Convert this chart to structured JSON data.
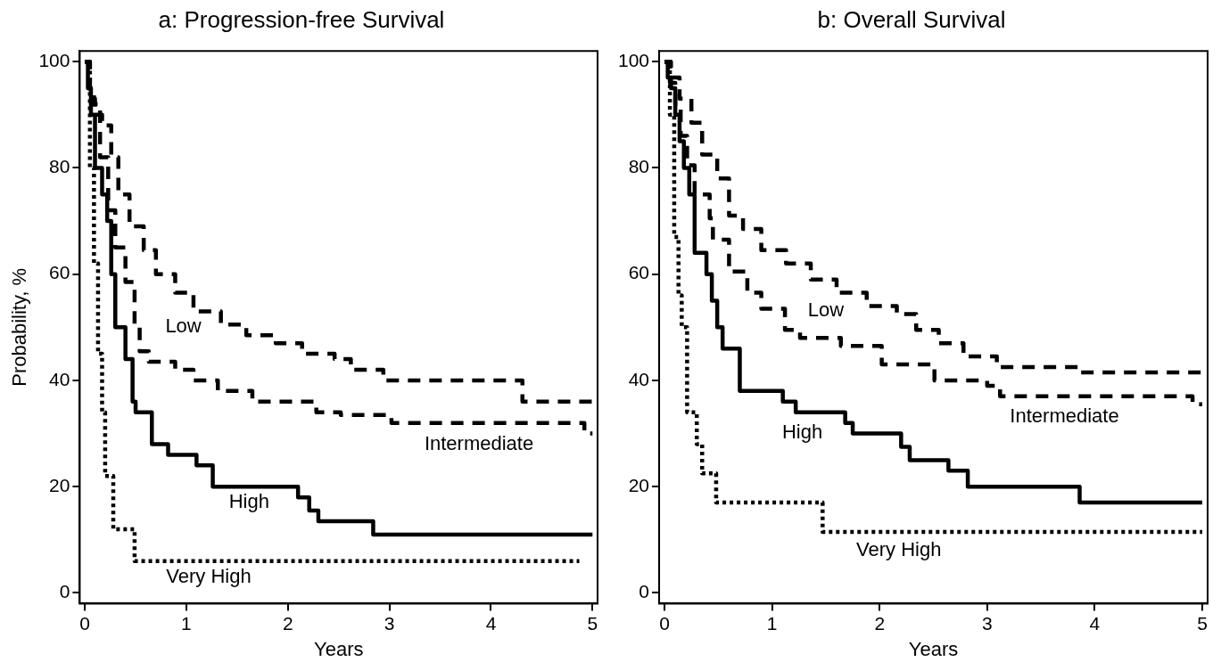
{
  "chart_data": [
    {
      "type": "step",
      "title": "a: Progression-free Survival",
      "xlabel": "Years",
      "ylabel": "Probability, %",
      "xlim": [
        -0.05,
        5.05
      ],
      "ylim": [
        -2,
        102
      ],
      "xticks": [
        0,
        1,
        2,
        3,
        4,
        5
      ],
      "yticks": [
        0,
        20,
        40,
        60,
        80,
        100
      ],
      "marker": "none",
      "series": [
        {
          "name": "Low",
          "color": "#000000",
          "line_style": "dashed",
          "x": [
            0,
            0.05,
            0.1,
            0.17,
            0.26,
            0.33,
            0.44,
            0.58,
            0.7,
            0.89,
            1.07,
            1.34,
            1.59,
            1.88,
            2.14,
            2.46,
            2.62,
            2.94,
            4.31,
            5
          ],
          "values": [
            100,
            93,
            90,
            88,
            82,
            75,
            69,
            64.5,
            60,
            56.5,
            53,
            50.5,
            48.5,
            47,
            45,
            44,
            42,
            40,
            36,
            36
          ]
        },
        {
          "name": "Intermediate",
          "color": "#000000",
          "line_style": "dashed",
          "x": [
            0,
            0.05,
            0.09,
            0.15,
            0.23,
            0.3,
            0.4,
            0.49,
            0.54,
            0.63,
            0.89,
            1.07,
            1.31,
            1.65,
            2.28,
            2.52,
            3.02,
            4.92,
            5
          ],
          "values": [
            100,
            95,
            92,
            82,
            72,
            65,
            58.5,
            50,
            45.5,
            43.5,
            42,
            40,
            38,
            36,
            34,
            33.5,
            32,
            30,
            30
          ]
        },
        {
          "name": "High",
          "color": "#000000",
          "line_style": "solid",
          "x": [
            0,
            0.03,
            0.06,
            0.1,
            0.17,
            0.22,
            0.26,
            0.3,
            0.4,
            0.47,
            0.5,
            0.66,
            0.82,
            1.1,
            1.26,
            2.1,
            2.21,
            2.3,
            2.84,
            5
          ],
          "values": [
            100,
            95,
            90,
            80,
            75,
            70,
            60,
            50,
            44,
            36,
            34,
            28,
            26,
            24,
            20,
            18,
            15.5,
            13.5,
            11,
            11
          ]
        },
        {
          "name": "Very High",
          "color": "#000000",
          "line_style": "dotted",
          "x": [
            0,
            0.05,
            0.09,
            0.13,
            0.17,
            0.2,
            0.28,
            0.49,
            4.87
          ],
          "values": [
            100,
            80,
            62,
            45,
            34,
            22,
            12,
            6,
            6
          ]
        }
      ]
    },
    {
      "type": "step",
      "title": "b: Overall Survival",
      "xlabel": "Years",
      "xlim": [
        -0.05,
        5.05
      ],
      "ylim": [
        -2,
        102
      ],
      "xticks": [
        0,
        1,
        2,
        3,
        4,
        5
      ],
      "yticks": [
        0,
        20,
        40,
        60,
        80,
        100
      ],
      "marker": "none",
      "series": [
        {
          "name": "Low",
          "color": "#000000",
          "line_style": "dashed",
          "x": [
            0,
            0.06,
            0.14,
            0.25,
            0.35,
            0.49,
            0.6,
            0.73,
            0.9,
            1.13,
            1.36,
            1.6,
            1.88,
            2.16,
            2.34,
            2.55,
            2.78,
            3.09,
            3.87,
            5
          ],
          "values": [
            100,
            97,
            93,
            88.5,
            82.5,
            78,
            71,
            68.5,
            64.5,
            62,
            59,
            56.5,
            54,
            52.5,
            49.5,
            47,
            44.5,
            42.5,
            41.5,
            41.5
          ]
        },
        {
          "name": "Intermediate",
          "color": "#000000",
          "line_style": "dashed",
          "x": [
            0,
            0.05,
            0.1,
            0.15,
            0.21,
            0.28,
            0.42,
            0.45,
            0.6,
            0.77,
            0.9,
            1.12,
            1.26,
            1.64,
            2.02,
            2.51,
            3,
            3.12,
            4.91,
            5
          ],
          "values": [
            100,
            96,
            92,
            86,
            80.5,
            75,
            70.5,
            66.5,
            60.5,
            56.5,
            53.5,
            49.5,
            48,
            46.5,
            43,
            40,
            39,
            37,
            35.5,
            35.5
          ]
        },
        {
          "name": "High",
          "color": "#000000",
          "line_style": "solid",
          "x": [
            0,
            0.03,
            0.06,
            0.1,
            0.14,
            0.18,
            0.23,
            0.28,
            0.39,
            0.44,
            0.49,
            0.54,
            0.7,
            1.1,
            1.22,
            1.68,
            1.75,
            2.2,
            2.28,
            2.64,
            2.82,
            3.86,
            5
          ],
          "values": [
            100,
            97,
            95,
            90,
            85,
            80,
            75,
            64,
            60,
            55,
            50,
            46,
            38,
            36,
            34,
            32,
            30,
            27.5,
            25,
            23,
            20,
            17,
            17
          ]
        },
        {
          "name": "Very High",
          "color": "#000000",
          "line_style": "dotted",
          "x": [
            0,
            0.05,
            0.09,
            0.13,
            0.16,
            0.21,
            0.3,
            0.35,
            0.48,
            1.47,
            5
          ],
          "values": [
            100,
            90,
            67,
            56,
            50,
            34,
            28,
            22.5,
            17,
            11.5,
            11.5
          ]
        }
      ]
    }
  ]
}
